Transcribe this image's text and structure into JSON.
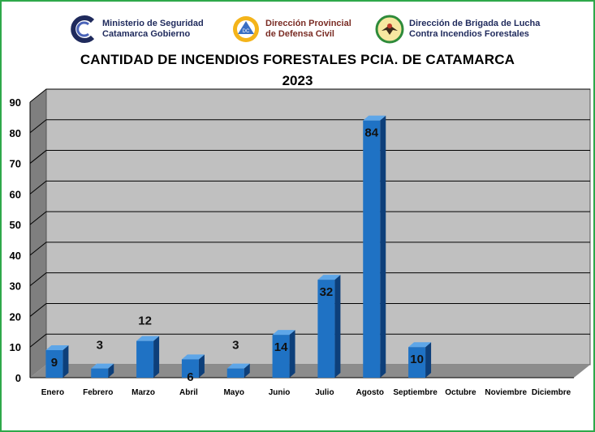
{
  "header": {
    "logos": [
      {
        "icon": "ministerio-seguridad-logo",
        "line1": "Ministerio de Seguridad",
        "line2": "Catamarca Gobierno"
      },
      {
        "icon": "defensa-civil-logo",
        "line1": "Dirección Provincial",
        "line2": "de Defensa Civil"
      },
      {
        "icon": "brigada-incendios-logo",
        "line1": "Dirección de Brigada de Lucha",
        "line2": "Contra Incendios Forestales"
      }
    ]
  },
  "chart_data": {
    "type": "bar",
    "title": "CANTIDAD DE INCENDIOS FORESTALES PCIA. DE CATAMARCA",
    "subtitle": "2023",
    "categories": [
      "Enero",
      "Febrero",
      "Marzo",
      "Abril",
      "Mayo",
      "Junio",
      "Julio",
      "Agosto",
      "Septiembre",
      "Octubre",
      "Noviembre",
      "Diciembre"
    ],
    "values": [
      9,
      3,
      12,
      6,
      3,
      14,
      32,
      84,
      10,
      null,
      null,
      null
    ],
    "data_labels": [
      "9",
      "3",
      "12",
      "6",
      "3",
      "14",
      "32",
      "84",
      "10",
      "",
      "",
      ""
    ],
    "y_ticks": [
      "0",
      "10",
      "20",
      "30",
      "40",
      "50",
      "60",
      "70",
      "80",
      "90"
    ],
    "ylim": [
      0,
      90
    ],
    "xlabel": "",
    "ylabel": "",
    "grid": true,
    "legend": "none",
    "style": "3d-column",
    "colors": {
      "bar_front": "#1f72c4",
      "bar_side": "#0d3f7a",
      "bar_top": "#5ea6e8",
      "back_wall": "#c0c0c0",
      "side_wall": "#7f7f7f",
      "floor": "#8c8c8c"
    }
  }
}
